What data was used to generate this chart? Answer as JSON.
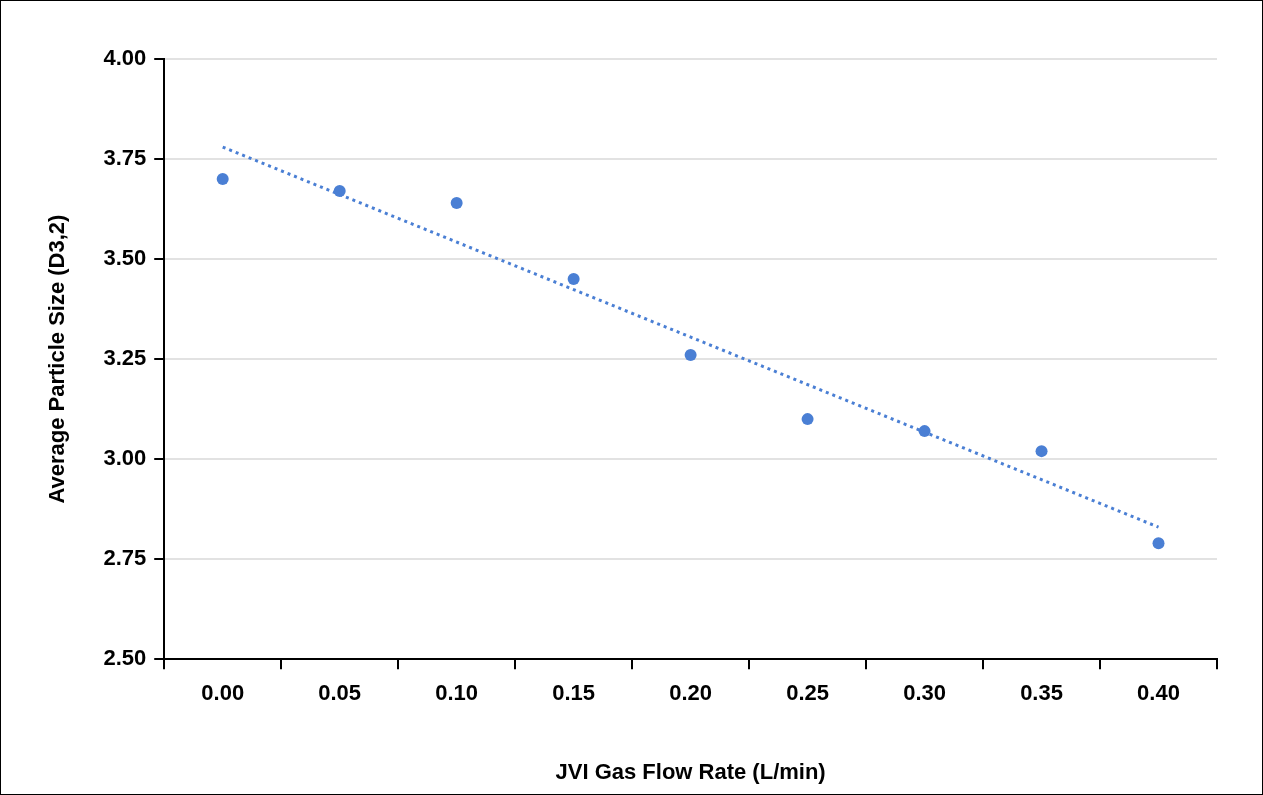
{
  "chart_data": {
    "type": "scatter",
    "xlabel": "JVI Gas Flow Rate (L/min)",
    "ylabel": "Average Particle Size (D3,2)",
    "categories": [
      "0.00",
      "0.05",
      "0.10",
      "0.15",
      "0.20",
      "0.25",
      "0.30",
      "0.35",
      "0.40"
    ],
    "ylim": [
      2.5,
      4.0
    ],
    "yticks": [
      {
        "value": 2.5,
        "label": "2.50"
      },
      {
        "value": 2.75,
        "label": "2.75"
      },
      {
        "value": 3,
        "label": "3.00"
      },
      {
        "value": 3.25,
        "label": "3.25"
      },
      {
        "value": 3.5,
        "label": "3.50"
      },
      {
        "value": 3.75,
        "label": "3.75"
      },
      {
        "value": 4,
        "label": "4.00"
      }
    ],
    "grid": "y",
    "legend": false,
    "marker": "circle",
    "series": [
      {
        "color": "#4a7fd4",
        "values": [
          3.7,
          3.67,
          3.64,
          3.45,
          3.26,
          3.1,
          3.07,
          3.02,
          2.79
        ]
      },
      {
        "type": "line",
        "color": "#4a7fd4",
        "line_style": "dotted",
        "marker": "none",
        "x": [
          "0.00",
          "0.40"
        ],
        "values": [
          3.78,
          2.83
        ]
      }
    ]
  }
}
